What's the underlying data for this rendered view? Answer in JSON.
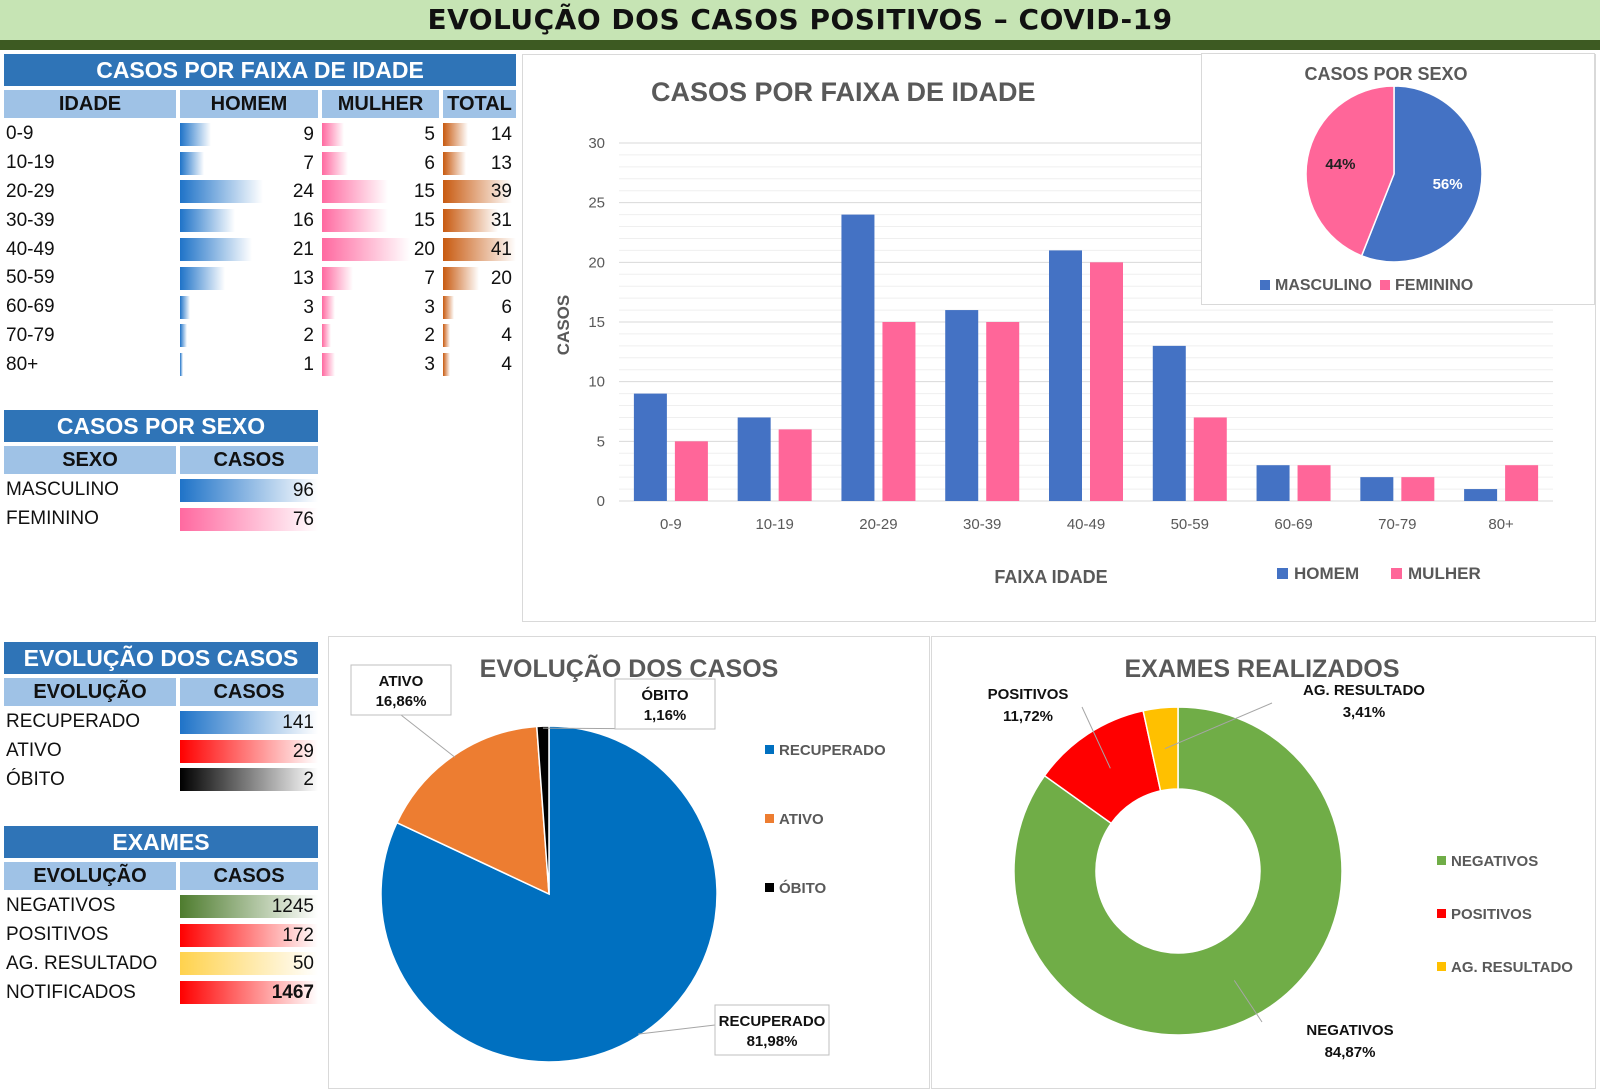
{
  "title": "EVOLUÇÃO DOS  CASOS POSITIVOS – COVID-19",
  "age_table": {
    "title": "CASOS POR FAIXA DE IDADE",
    "headers": [
      "IDADE",
      "HOMEM",
      "MULHER",
      "TOTAL"
    ],
    "rows": [
      {
        "age": "0-9",
        "homem": 9,
        "mulher": 5,
        "total": 14
      },
      {
        "age": "10-19",
        "homem": 7,
        "mulher": 6,
        "total": 13
      },
      {
        "age": "20-29",
        "homem": 24,
        "mulher": 15,
        "total": 39
      },
      {
        "age": "30-39",
        "homem": 16,
        "mulher": 15,
        "total": 31
      },
      {
        "age": "40-49",
        "homem": 21,
        "mulher": 20,
        "total": 41
      },
      {
        "age": "50-59",
        "homem": 13,
        "mulher": 7,
        "total": 20
      },
      {
        "age": "60-69",
        "homem": 3,
        "mulher": 3,
        "total": 6
      },
      {
        "age": "70-79",
        "homem": 2,
        "mulher": 2,
        "total": 4
      },
      {
        "age": "80+",
        "homem": 1,
        "mulher": 3,
        "total": 4
      }
    ]
  },
  "sex_table": {
    "title": "CASOS POR SEXO",
    "headers": [
      "SEXO",
      "CASOS"
    ],
    "rows": [
      {
        "label": "MASCULINO",
        "value": 96,
        "color": "blue"
      },
      {
        "label": "FEMININO",
        "value": 76,
        "color": "pink"
      }
    ]
  },
  "evolution_table": {
    "title": "EVOLUÇÃO DOS CASOS",
    "headers": [
      "EVOLUÇÃO",
      "CASOS"
    ],
    "rows": [
      {
        "label": "RECUPERADO",
        "value": 141,
        "color": "blue"
      },
      {
        "label": "ATIVO",
        "value": 29,
        "color": "red"
      },
      {
        "label": "ÓBITO",
        "value": 2,
        "color": "black"
      }
    ]
  },
  "exams_table": {
    "title": "EXAMES",
    "headers": [
      "EVOLUÇÃO",
      "CASOS"
    ],
    "rows": [
      {
        "label": "NEGATIVOS",
        "value": 1245,
        "color": "green"
      },
      {
        "label": "POSITIVOS",
        "value": 172,
        "color": "red"
      },
      {
        "label": "AG. RESULTADO",
        "value": 50,
        "color": "yellow"
      },
      {
        "label": "NOTIFICADOS",
        "value": 1467,
        "color": "red",
        "bold": true
      }
    ]
  },
  "colors": {
    "homem": "#4472c4",
    "mulher": "#ff6699",
    "recuperado": "#0070c0",
    "ativo": "#ed7d31",
    "obito": "#000000",
    "negativos": "#70ad47",
    "positivos": "#ff0000",
    "ag_resultado": "#ffc000"
  },
  "chart_data": [
    {
      "type": "bar",
      "title": "CASOS POR FAIXA DE IDADE",
      "xlabel": "FAIXA IDADE",
      "ylabel": "CASOS",
      "categories": [
        "0-9",
        "10-19",
        "20-29",
        "30-39",
        "40-49",
        "50-59",
        "60-69",
        "70-79",
        "80+"
      ],
      "series": [
        {
          "name": "HOMEM",
          "values": [
            9,
            7,
            24,
            16,
            21,
            13,
            3,
            2,
            1
          ]
        },
        {
          "name": "MULHER",
          "values": [
            5,
            6,
            15,
            15,
            20,
            7,
            3,
            2,
            3
          ]
        }
      ],
      "ylim": [
        0,
        30
      ],
      "yticks": [
        0,
        5,
        10,
        15,
        20,
        25,
        30
      ],
      "grid": true,
      "legend": "bottom-right"
    },
    {
      "type": "pie",
      "title": "CASOS POR SEXO",
      "labels": [
        "MASCULINO",
        "FEMININO"
      ],
      "values": [
        56,
        44
      ],
      "value_labels": [
        "56%",
        "44%"
      ],
      "legend": "bottom"
    },
    {
      "type": "pie",
      "title": "EVOLUÇÃO DOS CASOS",
      "labels": [
        "RECUPERADO",
        "ATIVO",
        "ÓBITO"
      ],
      "values": [
        81.98,
        16.86,
        1.16
      ],
      "value_labels": [
        "81,98%",
        "16,86%",
        "1,16%"
      ],
      "legend": "right"
    },
    {
      "type": "pie",
      "title": "EXAMES REALIZADOS",
      "labels": [
        "NEGATIVOS",
        "POSITIVOS",
        "AG. RESULTADO"
      ],
      "values": [
        84.87,
        11.72,
        3.41
      ],
      "value_labels": [
        "84,87%",
        "11,72%",
        "3,41%"
      ],
      "legend": "right"
    }
  ]
}
